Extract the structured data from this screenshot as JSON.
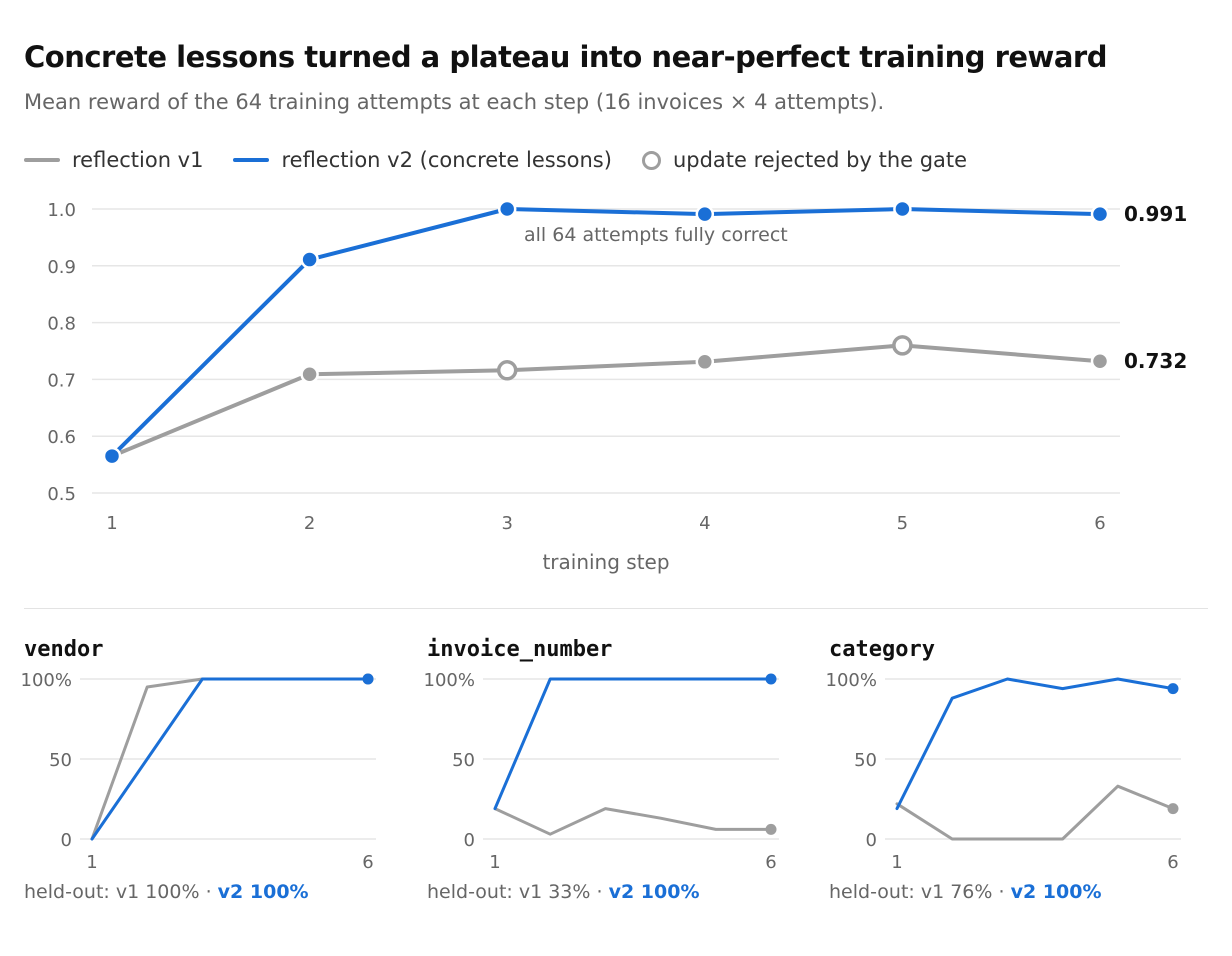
{
  "title": "Concrete lessons turned a plateau into near-perfect training reward",
  "subtitle": "Mean reward of the 64 training attempts at each step (16 invoices × 4 attempts).",
  "legend": {
    "v1": "reflection v1",
    "v2": "reflection v2 (concrete lessons)",
    "rejected": "update rejected by the gate"
  },
  "colors": {
    "v1": "#9e9e9e",
    "v2": "#1a6fd6",
    "grid": "#e6e6e6",
    "axis_text": "#666666"
  },
  "chart_data": [
    {
      "type": "line",
      "x": [
        1,
        2,
        3,
        4,
        5,
        6
      ],
      "xlabel": "training step",
      "ylabel": "",
      "ylim": [
        0.5,
        1.0
      ],
      "yticks": [
        "0.5",
        "0.6",
        "0.7",
        "0.8",
        "0.9",
        "1.0"
      ],
      "series": [
        {
          "name": "reflection v1",
          "values": [
            0.565,
            0.709,
            0.716,
            0.731,
            0.76,
            0.732
          ],
          "rejected_steps": [
            3,
            5
          ],
          "end_label": "0.732"
        },
        {
          "name": "reflection v2 (concrete lessons)",
          "values": [
            0.565,
            0.911,
            1.0,
            0.991,
            1.0,
            0.991
          ],
          "rejected_steps": [],
          "end_label": "0.991"
        }
      ],
      "annotations": [
        {
          "x": 3,
          "text": "all 64 attempts fully correct"
        }
      ],
      "grid": true,
      "legend_position": "top-left"
    },
    {
      "type": "line",
      "title": "vendor",
      "x": [
        1,
        2,
        3,
        4,
        5,
        6
      ],
      "ylim": [
        0,
        100
      ],
      "yticks": [
        "0",
        "50",
        "100%"
      ],
      "xticks": [
        "1",
        "6"
      ],
      "series": [
        {
          "name": "reflection v1",
          "values": [
            0,
            95,
            100,
            100,
            100,
            100
          ]
        },
        {
          "name": "reflection v2 (concrete lessons)",
          "values": [
            0,
            50,
            100,
            100,
            100,
            100
          ]
        }
      ],
      "footer": {
        "prefix": "held-out: v1 100% · ",
        "v2": "v2 100%"
      }
    },
    {
      "type": "line",
      "title": "invoice_number",
      "x": [
        1,
        2,
        3,
        4,
        5,
        6
      ],
      "ylim": [
        0,
        100
      ],
      "yticks": [
        "0",
        "50",
        "100%"
      ],
      "xticks": [
        "1",
        "6"
      ],
      "series": [
        {
          "name": "reflection v1",
          "values": [
            19,
            3,
            19,
            13,
            6,
            6
          ]
        },
        {
          "name": "reflection v2 (concrete lessons)",
          "values": [
            19,
            100,
            100,
            100,
            100,
            100
          ]
        }
      ],
      "footer": {
        "prefix": "held-out: v1 33% · ",
        "v2": "v2 100%"
      }
    },
    {
      "type": "line",
      "title": "category",
      "x": [
        1,
        2,
        3,
        4,
        5,
        6
      ],
      "ylim": [
        0,
        100
      ],
      "yticks": [
        "0",
        "50",
        "100%"
      ],
      "xticks": [
        "1",
        "6"
      ],
      "series": [
        {
          "name": "reflection v1",
          "values": [
            22,
            0,
            0,
            0,
            33,
            19
          ]
        },
        {
          "name": "reflection v2 (concrete lessons)",
          "values": [
            19,
            88,
            100,
            94,
            100,
            94
          ]
        }
      ],
      "footer": {
        "prefix": "held-out: v1 76% · ",
        "v2": "v2 100%"
      }
    }
  ]
}
